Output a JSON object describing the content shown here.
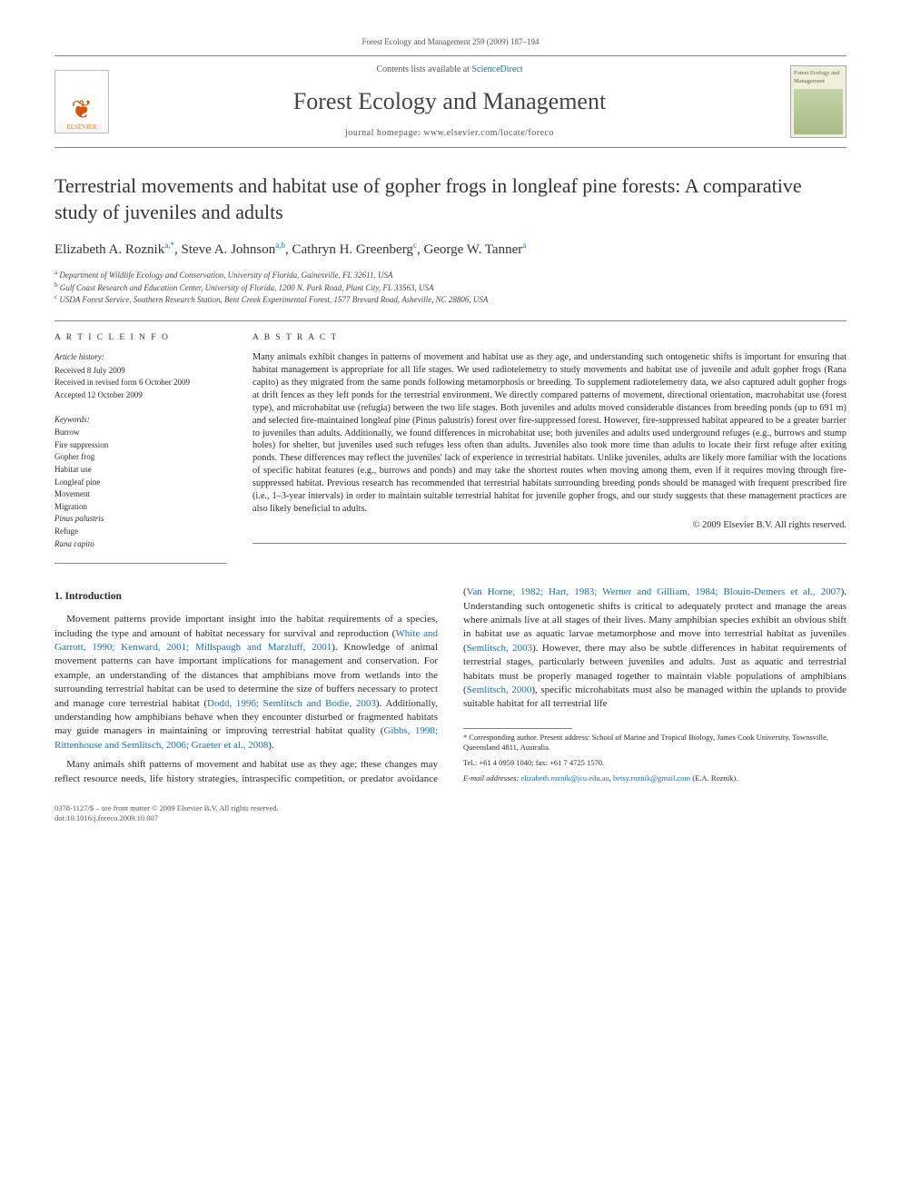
{
  "running_header": "Forest Ecology and Management 259 (2009) 187–194",
  "masthead": {
    "elsevier_label": "ELSEVIER",
    "contents_prefix": "Contents lists available at ",
    "contents_link": "ScienceDirect",
    "journal_name": "Forest Ecology and Management",
    "homepage_prefix": "journal homepage: ",
    "homepage_url": "www.elsevier.com/locate/foreco",
    "cover_title": "Forest Ecology and Management"
  },
  "title": "Terrestrial movements and habitat use of gopher frogs in longleaf pine forests: A comparative study of juveniles and adults",
  "authors_html": "Elizabeth A. Roznik<span class='sup'>a,*</span>, Steve A. Johnson<span class='sup'>a,b</span>, Cathryn H. Greenberg<span class='sup'>c</span>, George W. Tanner<span class='sup'>a</span>",
  "affiliations": [
    {
      "mark": "a",
      "text": "Department of Wildlife Ecology and Conservation, University of Florida, Gainesville, FL 32611, USA"
    },
    {
      "mark": "b",
      "text": "Gulf Coast Research and Education Center, University of Florida, 1200 N. Park Road, Plant City, FL 33563, USA"
    },
    {
      "mark": "c",
      "text": "USDA Forest Service, Southern Research Station, Bent Creek Experimental Forest, 1577 Brevard Road, Asheville, NC 28806, USA"
    }
  ],
  "info": {
    "heading": "A R T I C L E   I N F O",
    "history_head": "Article history:",
    "history": [
      "Received 8 July 2009",
      "Received in revised form 6 October 2009",
      "Accepted 12 October 2009"
    ],
    "keywords_head": "Keywords:",
    "keywords": [
      "Burrow",
      "Fire suppression",
      "Gopher frog",
      "Habitat use",
      "Longleaf pine",
      "Movement",
      "Migration",
      "Pinus palustris",
      "Refuge",
      "Rana capito"
    ]
  },
  "abstract": {
    "heading": "A B S T R A C T",
    "text": "Many animals exhibit changes in patterns of movement and habitat use as they age, and understanding such ontogenetic shifts is important for ensuring that habitat management is appropriate for all life stages. We used radiotelemetry to study movements and habitat use of juvenile and adult gopher frogs (Rana capito) as they migrated from the same ponds following metamorphosis or breeding. To supplement radiotelemetry data, we also captured adult gopher frogs at drift fences as they left ponds for the terrestrial environment. We directly compared patterns of movement, directional orientation, macrohabitat use (forest type), and microhabitat use (refugia) between the two life stages. Both juveniles and adults moved considerable distances from breeding ponds (up to 691 m) and selected fire-maintained longleaf pine (Pinus palustris) forest over fire-suppressed forest. However, fire-suppressed habitat appeared to be a greater barrier to juveniles than adults. Additionally, we found differences in microhabitat use; both juveniles and adults used underground refuges (e.g., burrows and stump holes) for shelter, but juveniles used such refuges less often than adults. Juveniles also took more time than adults to locate their first refuge after exiting ponds. These differences may reflect the juveniles' lack of experience in terrestrial habitats. Unlike juveniles, adults are likely more familiar with the locations of specific habitat features (e.g., burrows and ponds) and may take the shortest routes when moving among them, even if it requires moving through fire-suppressed habitat. Previous research has recommended that terrestrial habitats surrounding breeding ponds should be managed with frequent prescribed fire (i.e., 1–3-year intervals) in order to maintain suitable terrestrial habitat for juvenile gopher frogs, and our study suggests that these management practices are also likely beneficial to adults.",
    "copyright": "© 2009 Elsevier B.V. All rights reserved."
  },
  "sections": {
    "intro_heading": "1. Introduction",
    "p1_pre": "Movement patterns provide important insight into the habitat requirements of a species, including the type and amount of habitat necessary for survival and reproduction (",
    "p1_ref1": "White and Garrott, 1990; Kenward, 2001; Millspaugh and Marzluff, 2001",
    "p1_mid1": "). Knowledge of animal movement patterns can have important implications for management and conservation. For example, an understanding of the distances that amphibians move from wetlands into the surrounding terrestrial habitat can be used to determine the size of buffers necessary to protect and manage core terrestrial habitat (",
    "p1_ref2": "Dodd, 1996; Semlitsch and Bodie, 2003",
    "p1_post": ").",
    "p2_pre": "Additionally, understanding how amphibians behave when they encounter disturbed or fragmented habitats may guide managers in maintaining or improving terrestrial habitat quality (",
    "p2_ref": "Gibbs, 1998; Rittenhouse and Semlitsch, 2006; Graeter et al., 2008",
    "p2_post": ").",
    "p3_pre": "Many animals shift patterns of movement and habitat use as they age; these changes may reflect resource needs, life history strategies, intraspecific competition, or predator avoidance (",
    "p3_ref1": "Van Horne, 1982; Hart, 1983; Werner and Gilliam, 1984; Blouin-Demers et al., 2007",
    "p3_mid1": "). Understanding such ontogenetic shifts is critical to adequately protect and manage the areas where animals live at all stages of their lives. Many amphibian species exhibit an obvious shift in habitat use as aquatic larvae metamorphose and move into terrestrial habitat as juveniles (",
    "p3_ref2": "Semlitsch, 2003",
    "p3_mid2": "). However, there may also be subtle differences in habitat requirements of terrestrial stages, particularly between juveniles and adults. Just as aquatic and terrestrial habitats must be properly managed together to maintain viable populations of amphibians (",
    "p3_ref3": "Semlitsch, 2000",
    "p3_post": "), specific microhabitats must also be managed within the uplands to provide suitable habitat for all terrestrial life"
  },
  "footnote": {
    "corr_label": "* Corresponding author. Present address: School of Marine and Tropical Biology, James Cook University, Townsville, Queensland 4811, Australia.",
    "tel": "Tel.: +61 4 0959 1040; fax: +61 7 4725 1570.",
    "email_label": "E-mail addresses:",
    "email1": "elizabeth.roznik@jcu.edu.au",
    "email2": "betsy.roznik@gmail.com",
    "email_whom": "(E.A. Roznik)."
  },
  "bottom": {
    "issn": "0378-1127/$ – see front matter © 2009 Elsevier B.V. All rights reserved.",
    "doi": "doi:10.1016/j.foreco.2009.10.007"
  },
  "colors": {
    "link": "#1a6fb0",
    "text": "#2a2a2a",
    "rule": "#888888"
  }
}
